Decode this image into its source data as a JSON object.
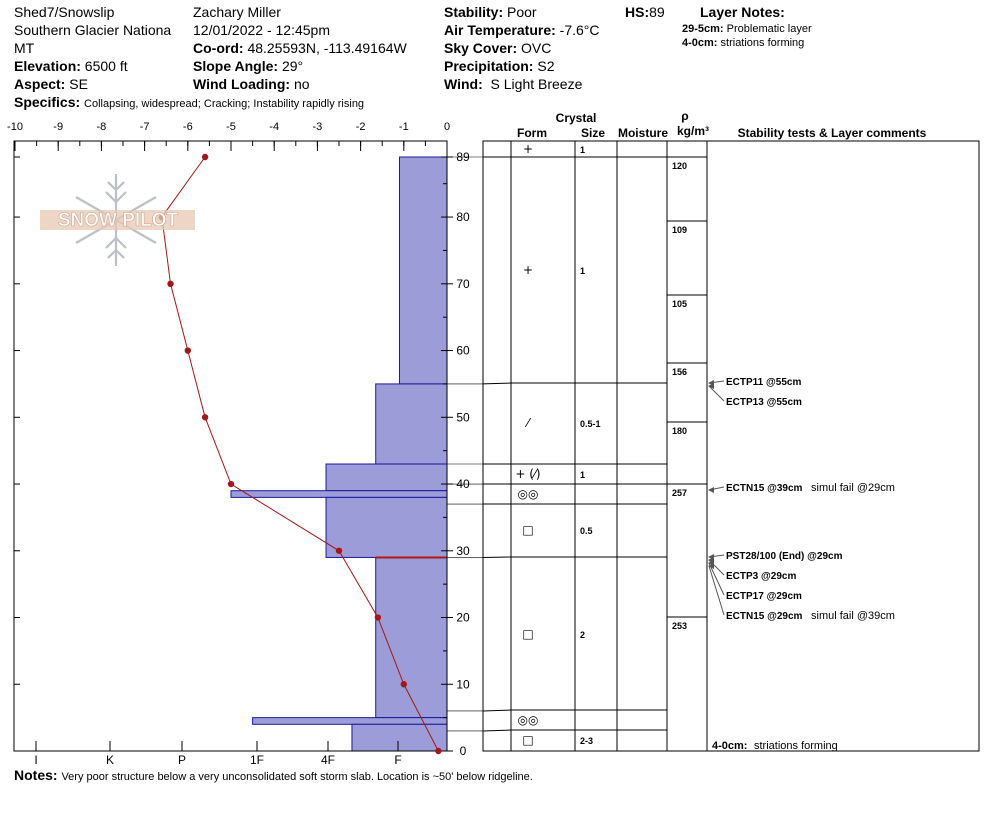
{
  "header": {
    "site": "Shed7/Snowslip",
    "location": "Southern Glacier Nationa",
    "state": "MT",
    "elevation_label": "Elevation:",
    "elevation_value": "6500 ft",
    "aspect_label": "Aspect:",
    "aspect_value": "SE",
    "specifics_label": "Specifics:",
    "specifics_value": "Collapsing, widespread; Cracking; Instability rapidly rising",
    "observer": "Zachary Miller",
    "datetime": "12/01/2022 - 12:45pm",
    "coord_label": "Co-ord:",
    "coord_value": "48.25593N, -113.49164W",
    "slope_label": "Slope Angle:",
    "slope_value": "29°",
    "wind_loading_label": "Wind Loading:",
    "wind_loading_value": "no",
    "stability_label": "Stability:",
    "stability_value": "Poor",
    "air_temp_label": "Air Temperature:",
    "air_temp_value": "-7.6°C",
    "sky_label": "Sky Cover:",
    "sky_value": "OVC",
    "precip_label": "Precipitation:",
    "precip_value": "S2",
    "wind_label": "Wind:",
    "wind_value": "S Light Breeze",
    "hs_label": "HS:",
    "hs_value": "89",
    "layer_notes_title": "Layer Notes:",
    "layer_notes": [
      {
        "range": "29-5cm:",
        "text": "Problematic layer"
      },
      {
        "range": "4-0cm:",
        "text": "striations forming"
      }
    ]
  },
  "notes": {
    "label": "Notes:",
    "text": "Very poor structure below a very unconsolidated soft storm slab. Location is ~50' below ridgeline."
  },
  "logo_text": "SNOW PILOT",
  "colors": {
    "hardness_fill": "#9c9cd8",
    "hardness_stroke": "#1a1a9c",
    "temp_line": "#a01818",
    "highlight_line": "#b01818"
  },
  "table_headers": {
    "crystal": "Crystal",
    "form": "Form",
    "size": "Size",
    "moisture": "Moisture",
    "rho": "ρ",
    "density_unit": "kg/m³",
    "stability": "Stability tests & Layer comments"
  },
  "chart_data": {
    "type": "snow_profile",
    "temperature_axis": {
      "ticks": [
        -10,
        -9,
        -8,
        -7,
        -6,
        -5,
        -4,
        -3,
        -2,
        -1,
        0
      ],
      "range": [
        -10,
        0
      ]
    },
    "height_axis": {
      "ticks": [
        0,
        10,
        20,
        30,
        40,
        50,
        60,
        70,
        80,
        89
      ],
      "range": [
        0,
        89
      ]
    },
    "hardness_axis": {
      "ticks": [
        "I",
        "K",
        "P",
        "1F",
        "4F",
        "F"
      ]
    },
    "hardness_profile": [
      {
        "top": 89,
        "bottom": 55,
        "temp_scale_value": -1.1
      },
      {
        "top": 55,
        "bottom": 43,
        "temp_scale_value": -1.65
      },
      {
        "top": 43,
        "bottom": 39,
        "temp_scale_value": -2.8
      },
      {
        "top": 39,
        "bottom": 38,
        "temp_scale_value": -5.0
      },
      {
        "top": 38,
        "bottom": 29,
        "temp_scale_value": -2.8
      },
      {
        "top": 29,
        "bottom": 5,
        "temp_scale_value": -1.65
      },
      {
        "top": 5,
        "bottom": 4,
        "temp_scale_value": -4.5
      },
      {
        "top": 4,
        "bottom": 0,
        "temp_scale_value": -2.2
      }
    ],
    "temperature_profile": [
      {
        "height": 89,
        "temp": -5.6
      },
      {
        "height": 80,
        "temp": -6.6
      },
      {
        "height": 70,
        "temp": -6.4
      },
      {
        "height": 60,
        "temp": -6.0
      },
      {
        "height": 50,
        "temp": -5.6
      },
      {
        "height": 40,
        "temp": -5.0
      },
      {
        "height": 30,
        "temp": -2.5
      },
      {
        "height": 20,
        "temp": -1.6
      },
      {
        "height": 10,
        "temp": -1.0
      },
      {
        "height": 0,
        "temp": -0.2
      }
    ],
    "layer_boundaries": [
      89,
      55,
      43,
      40,
      37,
      29,
      6,
      3
    ],
    "layers": [
      {
        "top": 89,
        "bottom": 87,
        "form": "+",
        "size": "1"
      },
      {
        "top": 87,
        "bottom": 55,
        "form": "+",
        "size": "1"
      },
      {
        "top": 55,
        "bottom": 43,
        "form": "⁄",
        "size": "0.5-1"
      },
      {
        "top": 43,
        "bottom": 40,
        "form": "+ (⁄)",
        "size": "1"
      },
      {
        "top": 40,
        "bottom": 37,
        "form": "◎◎",
        "size": ""
      },
      {
        "top": 37,
        "bottom": 29,
        "form": "□",
        "size": "0.5"
      },
      {
        "top": 29,
        "bottom": 6,
        "form": "□",
        "size": "2"
      },
      {
        "top": 6,
        "bottom": 3,
        "form": "◎◎",
        "size": ""
      },
      {
        "top": 3,
        "bottom": 0,
        "form": "□",
        "size": "2-3"
      }
    ],
    "densities": [
      {
        "value": "120",
        "top": 89,
        "bottom": 80
      },
      {
        "value": "109",
        "top": 80,
        "bottom": 69
      },
      {
        "value": "105",
        "top": 69,
        "bottom": 58
      },
      {
        "value": "156",
        "top": 58,
        "bottom": 49
      },
      {
        "value": "180",
        "top": 49,
        "bottom": 39
      },
      {
        "value": "257",
        "top": 39,
        "bottom": 20
      },
      {
        "value": "253",
        "top": 20,
        "bottom": 0
      }
    ],
    "stability_tests": [
      {
        "height": 55,
        "label": "ECTP11 @55cm",
        "extra": ""
      },
      {
        "height": 55,
        "label": "ECTP13 @55cm",
        "extra": ""
      },
      {
        "height": 39,
        "label": "ECTN15 @39cm",
        "extra": "simul fail @29cm"
      },
      {
        "height": 29,
        "label": "PST28/100 (End) @29cm",
        "extra": ""
      },
      {
        "height": 29,
        "label": "ECTP3 @29cm",
        "extra": ""
      },
      {
        "height": 29,
        "label": "ECTP17 @29cm",
        "extra": ""
      },
      {
        "height": 29,
        "label": "ECTN15 @29cm",
        "extra": "simul fail @39cm"
      }
    ],
    "bottom_comment": {
      "range": "4-0cm:",
      "text": "striations forming"
    }
  }
}
